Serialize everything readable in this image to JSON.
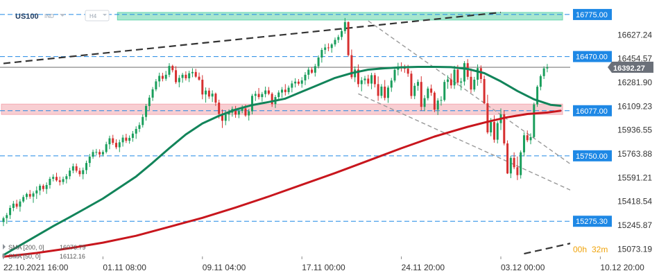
{
  "header": {
    "symbol": "US100",
    "tag": "IND",
    "timeframe": "H4"
  },
  "timer": {
    "hours": "00h",
    "minutes": "32m"
  },
  "legend": [
    {
      "label": "SMA [200, 0]",
      "value": "16076.79",
      "color": "#c8161d"
    },
    {
      "label": "SMA [50, 0]",
      "value": "16112.16",
      "color": "#12845a"
    }
  ],
  "chart_data": {
    "type": "candlestick",
    "title": "",
    "ylim": [
      15000,
      16840
    ],
    "y_ticks": [
      {
        "value": 16627.24,
        "label": "16627.24"
      },
      {
        "value": 16454.57,
        "label": "16454.57"
      },
      {
        "value": 16281.9,
        "label": "16281.90"
      },
      {
        "value": 16109.23,
        "label": "16109.23"
      },
      {
        "value": 15936.55,
        "label": "15936.55"
      },
      {
        "value": 15763.88,
        "label": "15763.88"
      },
      {
        "value": 15591.21,
        "label": "15591.21"
      },
      {
        "value": 15418.54,
        "label": "15418.54"
      },
      {
        "value": 15245.87,
        "label": "15245.87"
      },
      {
        "value": 15073.19,
        "label": "15073.19"
      }
    ],
    "x_ticks": [
      {
        "bar": 0,
        "label": "22.10.2021  16:00"
      },
      {
        "bar": 30,
        "label": "01.11  08:00"
      },
      {
        "bar": 60,
        "label": "09.11  04:00"
      },
      {
        "bar": 90,
        "label": "17.11  00:00"
      },
      {
        "bar": 120,
        "label": "24.11  20:00"
      },
      {
        "bar": 150,
        "label": "03.12  00:00"
      },
      {
        "bar": 180,
        "label": "10.12  20:00"
      }
    ],
    "levels": [
      {
        "value": 16775,
        "label": "16775.00",
        "style": "dashed"
      },
      {
        "value": 16470,
        "label": "16470.00",
        "style": "dashed"
      },
      {
        "value": 16077,
        "label": "16077.00",
        "style": "dashed"
      },
      {
        "value": 15750,
        "label": "15750.00",
        "style": "dashed"
      },
      {
        "value": 15275.3,
        "label": "15275.30",
        "style": "dashed"
      }
    ],
    "current_price": {
      "value": 16392.27,
      "label": "16392.27"
    },
    "zones": [
      {
        "from": 16735,
        "to": 16790,
        "color": "#5fd3a8",
        "x_from_bar": 35,
        "x_to_bar": 168
      },
      {
        "from": 16050,
        "to": 16125,
        "color": "#f3a5ad",
        "x_from_bar": 0,
        "x_to_bar": 168
      }
    ],
    "trendlines": [
      {
        "from": [
          0,
          16420
        ],
        "to": [
          150,
          16790
        ],
        "color": "#333333",
        "style": "dashed-thick"
      },
      {
        "from": [
          110,
          16729
        ],
        "to": [
          184,
          15469
        ],
        "color": "#999999",
        "style": "dashed"
      },
      {
        "from": [
          107,
          16200
        ],
        "to": [
          183,
          15370
        ],
        "color": "#999999",
        "style": "dashed"
      },
      {
        "from": [
          157,
          15040
        ],
        "to": [
          185,
          15190
        ],
        "color": "#333333",
        "style": "dashed-thick"
      }
    ],
    "candles": [
      [
        15270,
        15309,
        15240,
        15298
      ],
      [
        15298,
        15336,
        15257,
        15320
      ],
      [
        15320,
        15391,
        15292,
        15372
      ],
      [
        15372,
        15423,
        15348,
        15403
      ],
      [
        15403,
        15431,
        15365,
        15381
      ],
      [
        15381,
        15436,
        15345,
        15419
      ],
      [
        15419,
        15466,
        15409,
        15451
      ],
      [
        15451,
        15483,
        15432,
        15473
      ],
      [
        15473,
        15502,
        15438,
        15454
      ],
      [
        15454,
        15492,
        15409,
        15477
      ],
      [
        15477,
        15528,
        15437,
        15499
      ],
      [
        15499,
        15546,
        15465,
        15533
      ],
      [
        15533,
        15545,
        15490,
        15509
      ],
      [
        15509,
        15557,
        15474,
        15538
      ],
      [
        15538,
        15598,
        15512,
        15583
      ],
      [
        15583,
        15616,
        15564,
        15597
      ],
      [
        15597,
        15627,
        15562,
        15572
      ],
      [
        15572,
        15599,
        15535,
        15560
      ],
      [
        15560,
        15599,
        15541,
        15581
      ],
      [
        15581,
        15618,
        15550,
        15602
      ],
      [
        15602,
        15663,
        15580,
        15643
      ],
      [
        15643,
        15694,
        15623,
        15674
      ],
      [
        15674,
        15694,
        15628,
        15642
      ],
      [
        15642,
        15663,
        15599,
        15617
      ],
      [
        15617,
        15665,
        15580,
        15646
      ],
      [
        15646,
        15715,
        15618,
        15698
      ],
      [
        15698,
        15763,
        15669,
        15744
      ],
      [
        15744,
        15795,
        15729,
        15778
      ],
      [
        15778,
        15800,
        15755,
        15778
      ],
      [
        15778,
        15797,
        15738,
        15760
      ],
      [
        15760,
        15792,
        15746,
        15778
      ],
      [
        15778,
        15852,
        15767,
        15834
      ],
      [
        15834,
        15896,
        15798,
        15877
      ],
      [
        15877,
        15902,
        15829,
        15844
      ],
      [
        15844,
        15870,
        15798,
        15812
      ],
      [
        15812,
        15867,
        15777,
        15848
      ],
      [
        15848,
        15902,
        15817,
        15882
      ],
      [
        15882,
        15910,
        15843,
        15859
      ],
      [
        15859,
        15898,
        15838,
        15880
      ],
      [
        15880,
        15930,
        15852,
        15911
      ],
      [
        15911,
        15964,
        15873,
        15945
      ],
      [
        15945,
        15993,
        15922,
        15973
      ],
      [
        15973,
        16051,
        15955,
        16032
      ],
      [
        16032,
        16126,
        16005,
        16111
      ],
      [
        16111,
        16191,
        16081,
        16172
      ],
      [
        16172,
        16249,
        16148,
        16232
      ],
      [
        16232,
        16307,
        16218,
        16290
      ],
      [
        16290,
        16353,
        16249,
        16330
      ],
      [
        16330,
        16352,
        16290,
        16309
      ],
      [
        16309,
        16366,
        16294,
        16338
      ],
      [
        16338,
        16422,
        16320,
        16402
      ],
      [
        16402,
        16411,
        16355,
        16371
      ],
      [
        16371,
        16400,
        16271,
        16284
      ],
      [
        16284,
        16336,
        16247,
        16315
      ],
      [
        16315,
        16352,
        16280,
        16338
      ],
      [
        16338,
        16363,
        16296,
        16312
      ],
      [
        16312,
        16367,
        16285,
        16349
      ],
      [
        16349,
        16385,
        16320,
        16358
      ],
      [
        16358,
        16381,
        16315,
        16324
      ],
      [
        16324,
        16354,
        16295,
        16302
      ],
      [
        16302,
        16335,
        16160,
        16195
      ],
      [
        16195,
        16246,
        16136,
        16223
      ],
      [
        16223,
        16243,
        16163,
        16180
      ],
      [
        16180,
        16225,
        16140,
        16201
      ],
      [
        16201,
        16209,
        16112,
        16136
      ],
      [
        16136,
        16157,
        16020,
        16054
      ],
      [
        16054,
        16086,
        15952,
        16004
      ],
      [
        16004,
        16078,
        15972,
        16050
      ],
      [
        16050,
        16087,
        16002,
        16063
      ],
      [
        16063,
        16108,
        16034,
        16090
      ],
      [
        16090,
        16112,
        16026,
        16049
      ],
      [
        16049,
        16090,
        16023,
        16075
      ],
      [
        16075,
        16117,
        16059,
        16094
      ],
      [
        16094,
        16121,
        16033,
        16043
      ],
      [
        16043,
        16090,
        16006,
        16073
      ],
      [
        16073,
        16199,
        16051,
        16185
      ],
      [
        16185,
        16220,
        16148,
        16199
      ],
      [
        16199,
        16242,
        16159,
        16176
      ],
      [
        16176,
        16213,
        16143,
        16198
      ],
      [
        16198,
        16252,
        16174,
        16224
      ],
      [
        16224,
        16249,
        16190,
        16200
      ],
      [
        16200,
        16211,
        16105,
        16125
      ],
      [
        16125,
        16191,
        16097,
        16176
      ],
      [
        16176,
        16225,
        16160,
        16209
      ],
      [
        16209,
        16249,
        16172,
        16230
      ],
      [
        16230,
        16270,
        16187,
        16212
      ],
      [
        16212,
        16260,
        16195,
        16244
      ],
      [
        16244,
        16295,
        16210,
        16275
      ],
      [
        16275,
        16313,
        16246,
        16288
      ],
      [
        16288,
        16307,
        16259,
        16273
      ],
      [
        16273,
        16321,
        16244,
        16297
      ],
      [
        16297,
        16357,
        16263,
        16338
      ],
      [
        16338,
        16393,
        16305,
        16375
      ],
      [
        16375,
        16393,
        16345,
        16353
      ],
      [
        16353,
        16417,
        16325,
        16400
      ],
      [
        16400,
        16478,
        16384,
        16463
      ],
      [
        16463,
        16533,
        16426,
        16518
      ],
      [
        16518,
        16561,
        16488,
        16536
      ],
      [
        16536,
        16566,
        16509,
        16532
      ],
      [
        16532,
        16567,
        16498,
        16558
      ],
      [
        16558,
        16608,
        16542,
        16591
      ],
      [
        16591,
        16628,
        16569,
        16612
      ],
      [
        16612,
        16672,
        16590,
        16655
      ],
      [
        16655,
        16750,
        16635,
        16720
      ],
      [
        16720,
        16725,
        16470,
        16480
      ],
      [
        16480,
        16521,
        16306,
        16320
      ],
      [
        16320,
        16399,
        16285,
        16376
      ],
      [
        16376,
        16413,
        16248,
        16270
      ],
      [
        16270,
        16321,
        16218,
        16298
      ],
      [
        16298,
        16330,
        16269,
        16310
      ],
      [
        16310,
        16338,
        16254,
        16274
      ],
      [
        16274,
        16352,
        16233,
        16335
      ],
      [
        16335,
        16352,
        16246,
        16270
      ],
      [
        16270,
        16326,
        16149,
        16185
      ],
      [
        16185,
        16270,
        16167,
        16252
      ],
      [
        16252,
        16300,
        16152,
        16170
      ],
      [
        16170,
        16260,
        16134,
        16245
      ],
      [
        16245,
        16315,
        16214,
        16296
      ],
      [
        16296,
        16393,
        16282,
        16374
      ],
      [
        16374,
        16425,
        16333,
        16398
      ],
      [
        16398,
        16428,
        16361,
        16387
      ],
      [
        16387,
        16411,
        16352,
        16382
      ],
      [
        16382,
        16410,
        16323,
        16346
      ],
      [
        16346,
        16367,
        16163,
        16184
      ],
      [
        16184,
        16278,
        16161,
        16258
      ],
      [
        16258,
        16304,
        16222,
        16286
      ],
      [
        16286,
        16327,
        16078,
        16105
      ],
      [
        16105,
        16190,
        16074,
        16168
      ],
      [
        16168,
        16253,
        16152,
        16238
      ],
      [
        16238,
        16267,
        16185,
        16208
      ],
      [
        16208,
        16219,
        16067,
        16085
      ],
      [
        16085,
        16168,
        16046,
        16151
      ],
      [
        16151,
        16182,
        16114,
        16155
      ],
      [
        16155,
        16302,
        16144,
        16286
      ],
      [
        16286,
        16334,
        16236,
        16304
      ],
      [
        16304,
        16347,
        16238,
        16261
      ],
      [
        16261,
        16403,
        16235,
        16375
      ],
      [
        16375,
        16409,
        16261,
        16281
      ],
      [
        16281,
        16315,
        16225,
        16289
      ],
      [
        16289,
        16437,
        16260,
        16422
      ],
      [
        16422,
        16451,
        16302,
        16323
      ],
      [
        16323,
        16384,
        16207,
        16231
      ],
      [
        16231,
        16323,
        16215,
        16302
      ],
      [
        16302,
        16413,
        16258,
        16386
      ],
      [
        16386,
        16406,
        16277,
        16307
      ],
      [
        16307,
        16332,
        16125,
        16131
      ],
      [
        16131,
        16193,
        15908,
        15920
      ],
      [
        15920,
        16024,
        15892,
        15995
      ],
      [
        15995,
        16044,
        15845,
        15867
      ],
      [
        15867,
        16001,
        15840,
        15987
      ],
      [
        15987,
        16094,
        15937,
        16051
      ],
      [
        16051,
        16081,
        15826,
        15840
      ],
      [
        15840,
        15862,
        15618,
        15622
      ],
      [
        15622,
        15751,
        15588,
        15735
      ],
      [
        15735,
        15775,
        15653,
        15667
      ],
      [
        15667,
        15745,
        15574,
        15610
      ],
      [
        15610,
        15789,
        15585,
        15775
      ],
      [
        15775,
        15921,
        15746,
        15899
      ],
      [
        15899,
        15934,
        15849,
        15863
      ],
      [
        15863,
        15913,
        15834,
        15886
      ],
      [
        15886,
        16136,
        15879,
        16123
      ],
      [
        16123,
        16263,
        16105,
        16251
      ],
      [
        16251,
        16340,
        16225,
        16328
      ],
      [
        16328,
        16399,
        16307,
        16384
      ],
      [
        16384,
        16416,
        16356,
        16392
      ]
    ],
    "series": [
      {
        "name": "SMA [200, 0]",
        "color": "#c8161d",
        "points": [
          [
            0,
            15018
          ],
          [
            10,
            15045
          ],
          [
            20,
            15080
          ],
          [
            30,
            15120
          ],
          [
            40,
            15170
          ],
          [
            50,
            15235
          ],
          [
            60,
            15300
          ],
          [
            70,
            15375
          ],
          [
            80,
            15455
          ],
          [
            90,
            15540
          ],
          [
            100,
            15625
          ],
          [
            110,
            15715
          ],
          [
            120,
            15805
          ],
          [
            130,
            15890
          ],
          [
            140,
            15960
          ],
          [
            146,
            15997
          ],
          [
            152,
            16030
          ],
          [
            158,
            16053
          ],
          [
            164,
            16064
          ],
          [
            168,
            16077
          ]
        ]
      },
      {
        "name": "SMA [50, 0]",
        "color": "#12845a",
        "points": [
          [
            0,
            15030
          ],
          [
            5,
            15100
          ],
          [
            10,
            15170
          ],
          [
            15,
            15240
          ],
          [
            20,
            15305
          ],
          [
            25,
            15372
          ],
          [
            30,
            15440
          ],
          [
            35,
            15520
          ],
          [
            40,
            15600
          ],
          [
            45,
            15700
          ],
          [
            50,
            15805
          ],
          [
            55,
            15905
          ],
          [
            60,
            15985
          ],
          [
            65,
            16040
          ],
          [
            70,
            16085
          ],
          [
            75,
            16118
          ],
          [
            80,
            16140
          ],
          [
            85,
            16165
          ],
          [
            90,
            16215
          ],
          [
            95,
            16265
          ],
          [
            100,
            16315
          ],
          [
            105,
            16350
          ],
          [
            110,
            16375
          ],
          [
            115,
            16385
          ],
          [
            120,
            16392
          ],
          [
            125,
            16395
          ],
          [
            130,
            16395
          ],
          [
            135,
            16393
          ],
          [
            140,
            16380
          ],
          [
            145,
            16350
          ],
          [
            150,
            16290
          ],
          [
            155,
            16220
          ],
          [
            160,
            16160
          ],
          [
            165,
            16120
          ],
          [
            168,
            16113
          ]
        ]
      }
    ]
  }
}
